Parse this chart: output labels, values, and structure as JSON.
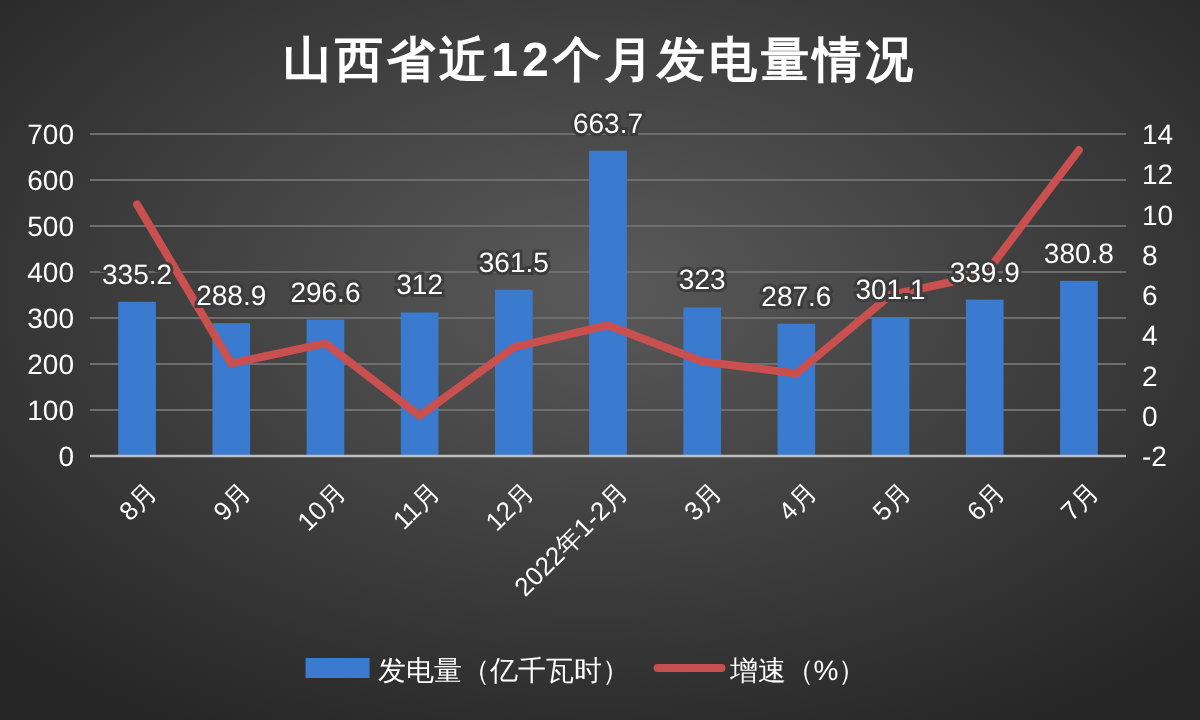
{
  "chart_data": {
    "type": "bar",
    "title": "山西省近12个月发电量情况",
    "categories": [
      "8月",
      "9月",
      "10月",
      "11月",
      "12月",
      "2022年1-2月",
      "3月",
      "4月",
      "5月",
      "6月",
      "7月"
    ],
    "series": [
      {
        "name": "发电量（亿千瓦时）",
        "color": "#3a7bcf",
        "values": [
          335.2,
          288.9,
          296.6,
          312,
          361.5,
          663.7,
          323,
          287.6,
          301.1,
          339.9,
          380.8
        ],
        "value_labels": [
          "335.2",
          "288.9",
          "296.6",
          "312",
          "361.5",
          "663.7",
          "323",
          "287.6",
          "301.1",
          "339.9",
          "380.8"
        ]
      },
      {
        "name": "增速（%）",
        "type": "line",
        "axis": "y2",
        "color": "#c9504f",
        "values": [
          10.5,
          2.6,
          3.6,
          0.0,
          3.4,
          4.5,
          2.7,
          2.1,
          6.0,
          7.0,
          13.2
        ]
      }
    ],
    "ylim": [
      0,
      700
    ],
    "yticks": [
      0,
      100,
      200,
      300,
      400,
      500,
      600,
      700
    ],
    "y2lim": [
      -2,
      14
    ],
    "y2ticks": [
      -2,
      0,
      2,
      4,
      6,
      8,
      10,
      12,
      14
    ],
    "grid": "y",
    "legend": "bottom"
  }
}
